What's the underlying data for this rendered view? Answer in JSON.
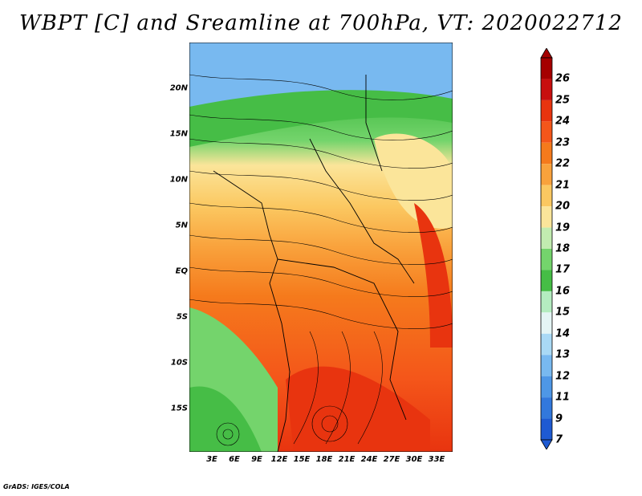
{
  "title": "WBPT [C] and Sreamline at 700hPa, VT: 2020022712",
  "credit": "GrADS: IGES/COLA",
  "map": {
    "lat_labels": [
      "20N",
      "15N",
      "10N",
      "5N",
      "EQ",
      "5S",
      "10S",
      "15S"
    ],
    "lon_labels": [
      "3E",
      "6E",
      "9E",
      "12E",
      "15E",
      "18E",
      "21E",
      "24E",
      "27E",
      "30E",
      "33E"
    ]
  },
  "colorbar": {
    "labels": [
      "26",
      "25",
      "24",
      "23",
      "22",
      "21",
      "20",
      "19",
      "18",
      "17",
      "16",
      "15",
      "14",
      "13",
      "12",
      "11",
      "9",
      "7"
    ],
    "colors": [
      "#a50000",
      "#c80f0f",
      "#e8340f",
      "#f4561a",
      "#f57a1c",
      "#f9a23c",
      "#fbc861",
      "#fbe59a",
      "#c2ecb0",
      "#74d46c",
      "#46bd46",
      "#b4ecc0",
      "#e4f5f5",
      "#a9d9f5",
      "#78b9f0",
      "#4e97e6",
      "#3278dc",
      "#1e5ad2"
    ]
  }
}
